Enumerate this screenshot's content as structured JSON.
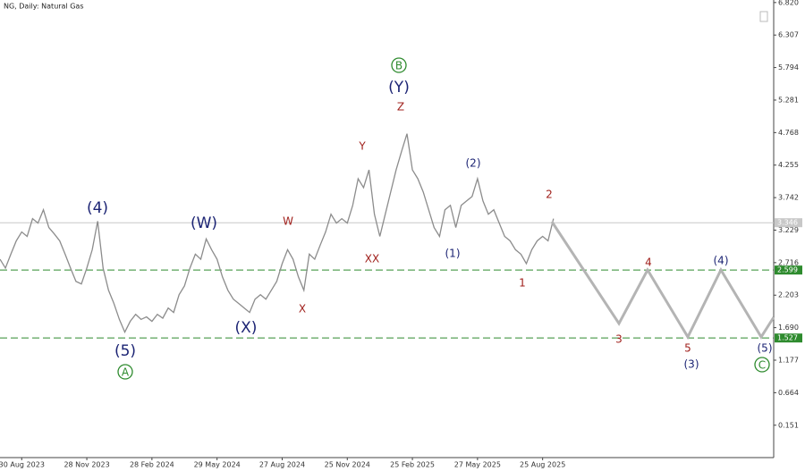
{
  "chart_data": {
    "type": "line",
    "title": "NG, Daily:  Natural Gas",
    "categories": [
      null,
      null,
      null,
      null,
      "30 Aug 2023",
      null,
      null,
      null,
      null,
      null,
      null,
      null,
      null,
      null,
      null,
      null,
      "28 Nov 2023",
      null,
      null,
      null,
      null,
      null,
      null,
      null,
      null,
      null,
      null,
      null,
      "28 Feb 2024",
      null,
      null,
      null,
      null,
      null,
      null,
      null,
      null,
      null,
      null,
      null,
      "29 May 2024",
      null,
      null,
      null,
      null,
      null,
      null,
      null,
      null,
      null,
      null,
      null,
      "27 Aug 2024",
      null,
      null,
      null,
      null,
      null,
      null,
      null,
      null,
      null,
      null,
      null,
      "25 Nov 2024",
      null,
      null,
      null,
      null,
      null,
      null,
      null,
      null,
      null,
      null,
      null,
      "25 Feb 2025",
      null,
      null,
      null,
      null,
      null,
      null,
      null,
      null,
      null,
      null,
      null,
      "27 May 2025",
      null,
      null,
      null,
      null,
      null,
      null,
      null,
      null,
      null,
      null,
      null,
      "25 Aug 2025",
      null,
      null
    ],
    "values": [
      2.77,
      2.63,
      2.85,
      3.06,
      3.2,
      3.13,
      3.41,
      3.34,
      3.55,
      3.27,
      3.17,
      3.06,
      2.85,
      2.63,
      2.42,
      2.38,
      2.63,
      2.92,
      3.37,
      2.63,
      2.28,
      2.07,
      1.82,
      1.62,
      1.79,
      1.9,
      1.82,
      1.86,
      1.79,
      1.9,
      1.84,
      2.0,
      1.93,
      2.21,
      2.35,
      2.63,
      2.85,
      2.77,
      3.09,
      2.92,
      2.77,
      2.49,
      2.28,
      2.14,
      2.07,
      2.0,
      1.93,
      2.14,
      2.21,
      2.14,
      2.28,
      2.42,
      2.7,
      2.92,
      2.77,
      2.49,
      2.28,
      2.85,
      2.77,
      2.99,
      3.2,
      3.48,
      3.34,
      3.41,
      3.34,
      3.62,
      4.04,
      3.9,
      4.18,
      3.48,
      3.13,
      3.48,
      3.83,
      4.18,
      4.47,
      4.75,
      4.18,
      4.04,
      3.83,
      3.55,
      3.27,
      3.13,
      3.55,
      3.62,
      3.27,
      3.62,
      3.69,
      3.76,
      4.04,
      3.69,
      3.48,
      3.55,
      3.34,
      3.13,
      3.06,
      2.92,
      2.85,
      2.7,
      2.92,
      3.06,
      3.13,
      3.06,
      3.41
    ],
    "color": "#8c8c8c",
    "ylim": [
      -0.36,
      6.86
    ],
    "yticks": [
      {
        "value": 6.82,
        "label": "6.820"
      },
      6.307,
      5.794,
      5.281,
      4.768,
      4.255,
      3.742,
      3.229,
      2.716,
      2.203,
      {
        "value": 1.69,
        "label": "1.690"
      },
      1.177,
      0.664,
      0.151
    ],
    "current_price": 3.346,
    "levels": [
      2.599,
      1.527
    ],
    "level_color": "#2e8b2e",
    "annotations": [
      {
        "text": "(4)",
        "color": "#1c2474"
      },
      {
        "text": "(5)",
        "color": "#1c2474"
      },
      {
        "text": "A",
        "color": "#2e8b2e",
        "circle": true
      },
      {
        "text": "(W)",
        "color": "#1c2474"
      },
      {
        "text": "(X)",
        "color": "#1c2474"
      },
      {
        "text": "W",
        "color": "#a0201c"
      },
      {
        "text": "X",
        "color": "#a0201c"
      },
      {
        "text": "Y",
        "color": "#a0201c"
      },
      {
        "text": "XX",
        "color": "#a0201c"
      },
      {
        "text": "Z",
        "color": "#a0201c"
      },
      {
        "text": "(Y)",
        "color": "#1c2474"
      },
      {
        "text": "B",
        "color": "#2e8b2e",
        "circle": true
      },
      {
        "text": "(1)",
        "color": "#1c2474"
      },
      {
        "text": "(2)",
        "color": "#1c2474"
      },
      {
        "text": "1",
        "color": "#a0201c"
      },
      {
        "text": "2",
        "color": "#a0201c"
      },
      {
        "text": "3",
        "color": "#a0201c"
      },
      {
        "text": "4",
        "color": "#a0201c"
      },
      {
        "text": "5",
        "color": "#a0201c"
      },
      {
        "text": "(3)",
        "color": "#1c2474"
      },
      {
        "text": "(4)",
        "color": "#1c2474"
      },
      {
        "text": "(5)",
        "color": "#1c2474"
      },
      {
        "text": "C",
        "color": "#2e8b2e",
        "circle": true
      }
    ]
  }
}
